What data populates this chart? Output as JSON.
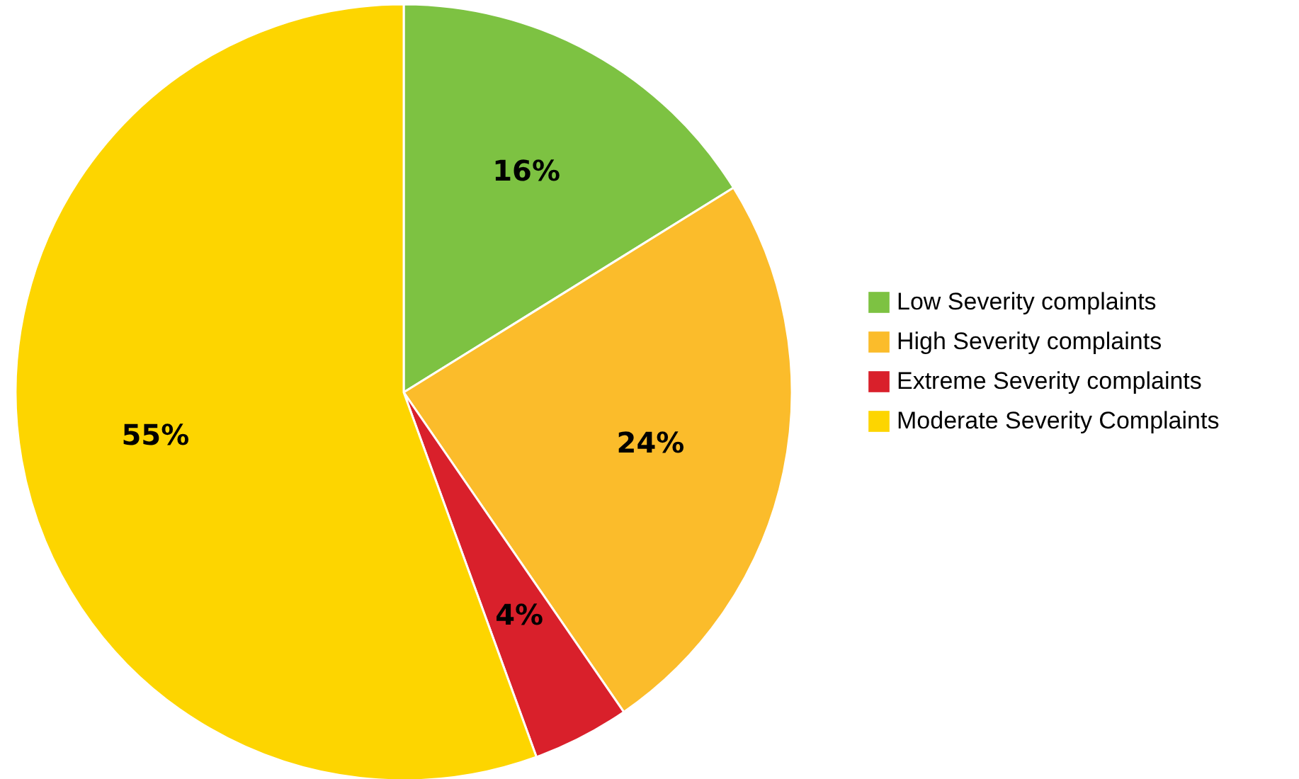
{
  "chart_data": {
    "type": "pie",
    "categories": [
      "Low Severity complaints",
      "High Severity complaints",
      "Extreme Severity complaints",
      "Moderate Severity Complaints"
    ],
    "values": [
      16,
      24,
      4,
      55
    ],
    "colors": [
      "#7dc242",
      "#fbbc2b",
      "#d9202b",
      "#fdd500"
    ],
    "value_labels": [
      "16%",
      "24%",
      "4%",
      "55%"
    ],
    "legend": "right"
  }
}
